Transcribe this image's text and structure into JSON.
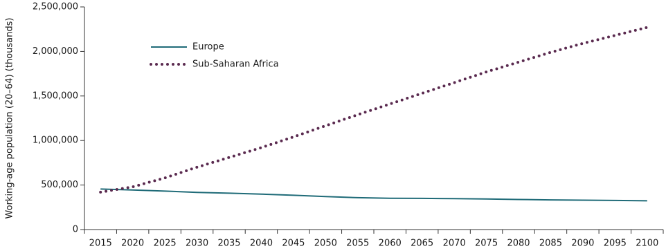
{
  "chart_data": {
    "type": "line",
    "y_label": "Working-age population (20–64) (thousands)",
    "categories": [
      "2015",
      "2020",
      "2025",
      "2030",
      "2035",
      "2040",
      "2045",
      "2050",
      "2055",
      "2060",
      "2065",
      "2070",
      "2075",
      "2080",
      "2085",
      "2090",
      "2095",
      "2100"
    ],
    "series": [
      {
        "name": "Europe",
        "color": "#1f6b78",
        "style": "solid",
        "values": [
          455000,
          445000,
          432000,
          418000,
          408000,
          398000,
          385000,
          370000,
          358000,
          352000,
          350000,
          347000,
          343000,
          338000,
          333000,
          330000,
          327000,
          323000
        ]
      },
      {
        "name": "Sub-Saharan Africa",
        "color": "#5a2a4f",
        "style": "dotted",
        "values": [
          420000,
          480000,
          580000,
          700000,
          810000,
          920000,
          1040000,
          1165000,
          1290000,
          1410000,
          1530000,
          1650000,
          1770000,
          1880000,
          1990000,
          2090000,
          2180000,
          2270000
        ]
      }
    ],
    "ylim": [
      0,
      2500000
    ],
    "yticks": [
      0,
      {
        "value": 500000,
        "label": "500,000"
      },
      {
        "value": 1000000,
        "label": "1,000,000"
      },
      {
        "value": 1500000,
        "label": "1,500,000"
      },
      {
        "value": 2000000,
        "label": "2,000,000"
      },
      {
        "value": 2500000,
        "label": "2,500,000"
      }
    ],
    "grid": false,
    "legend": "upper left"
  }
}
